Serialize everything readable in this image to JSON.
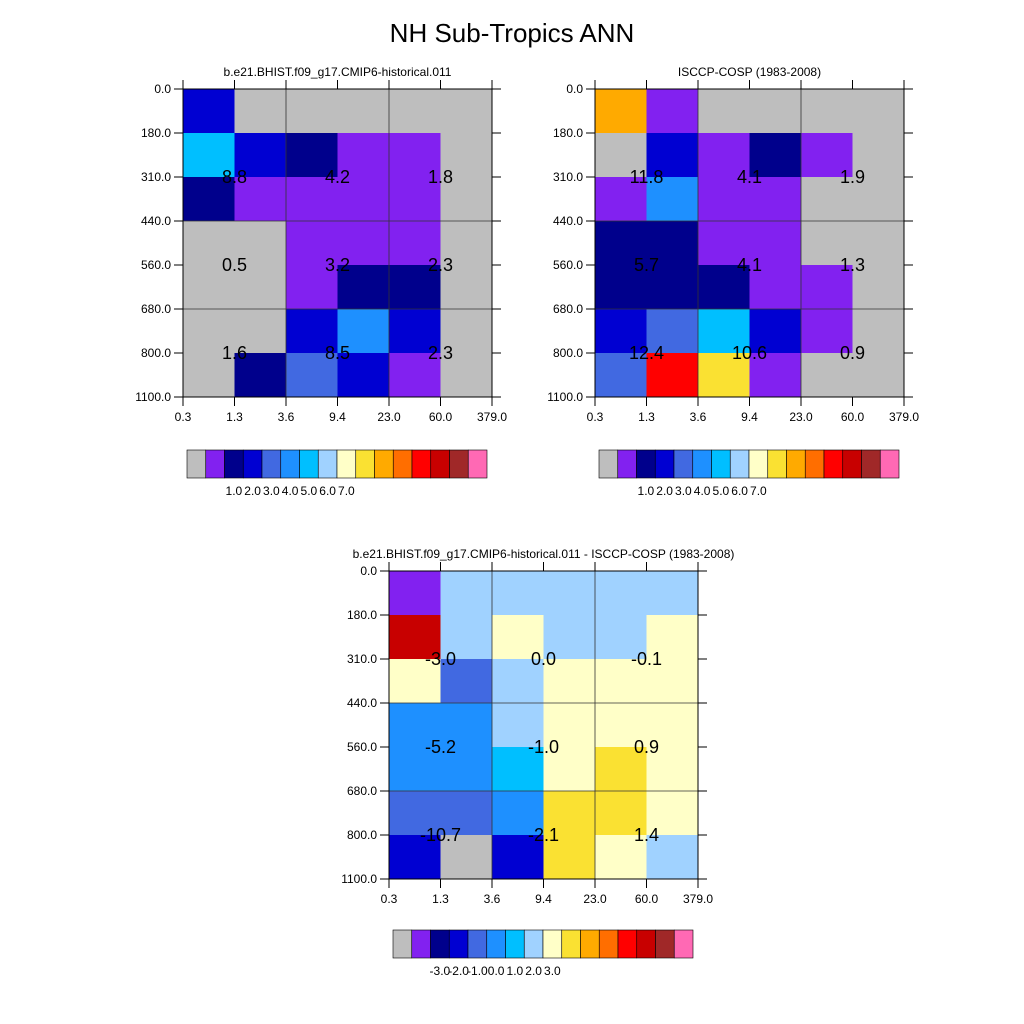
{
  "title": "NH Sub-Tropics ANN",
  "palette": {
    "gray": "#bebebe",
    "violet": "#8221f0",
    "navy": "#00008c",
    "blue": "#0000d2",
    "royal": "#4169e1",
    "dodger": "#1e90ff",
    "sky": "#00bfff",
    "lightblue": "#a0d2ff",
    "cream": "#ffffc8",
    "gold": "#fae132",
    "amber": "#ffaa00",
    "orange": "#ff6e00",
    "red": "#ff0000",
    "crimson": "#c80000",
    "maroon": "#a02828",
    "pink": "#ff69b4"
  },
  "chart_data": [
    {
      "type": "heatmap",
      "title": "b.e21.BHIST.f09_g17.CMIP6-historical.011",
      "x_ticks": [
        "0.3",
        "1.3",
        "3.6",
        "9.4",
        "23.0",
        "60.0",
        "379.0"
      ],
      "y_ticks": [
        "0.0",
        "180.0",
        "310.0",
        "440.0",
        "560.0",
        "680.0",
        "800.0",
        "1100.0"
      ],
      "cell_colors": [
        [
          "blue",
          "gray",
          "gray",
          "gray",
          "gray",
          "gray"
        ],
        [
          "sky",
          "blue",
          "navy",
          "violet",
          "violet",
          "gray"
        ],
        [
          "navy",
          "violet",
          "violet",
          "violet",
          "violet",
          "gray"
        ],
        [
          "gray",
          "gray",
          "violet",
          "violet",
          "violet",
          "gray"
        ],
        [
          "gray",
          "gray",
          "violet",
          "navy",
          "navy",
          "gray"
        ],
        [
          "gray",
          "gray",
          "blue",
          "dodger",
          "blue",
          "gray"
        ],
        [
          "gray",
          "navy",
          "royal",
          "blue",
          "violet",
          "gray"
        ]
      ],
      "block_values": [
        [
          "8.8",
          "4.2",
          "1.8"
        ],
        [
          "0.5",
          "3.2",
          "2.3"
        ],
        [
          "1.6",
          "8.5",
          "2.3"
        ]
      ],
      "colorbar": {
        "colors": [
          "gray",
          "violet",
          "navy",
          "blue",
          "royal",
          "dodger",
          "sky",
          "lightblue",
          "cream",
          "gold",
          "amber",
          "orange",
          "red",
          "crimson",
          "maroon",
          "pink"
        ],
        "labels": [
          "1.0",
          "2.0",
          "3.0",
          "4.0",
          "5.0",
          "6.0",
          "7.0"
        ]
      }
    },
    {
      "type": "heatmap",
      "title": "ISCCP-COSP (1983-2008)",
      "x_ticks": [
        "0.3",
        "1.3",
        "3.6",
        "9.4",
        "23.0",
        "60.0",
        "379.0"
      ],
      "y_ticks": [
        "0.0",
        "180.0",
        "310.0",
        "440.0",
        "560.0",
        "680.0",
        "800.0",
        "1100.0"
      ],
      "cell_colors": [
        [
          "amber",
          "violet",
          "gray",
          "gray",
          "gray",
          "gray"
        ],
        [
          "gray",
          "blue",
          "violet",
          "navy",
          "violet",
          "gray"
        ],
        [
          "violet",
          "dodger",
          "violet",
          "violet",
          "gray",
          "gray"
        ],
        [
          "navy",
          "navy",
          "violet",
          "violet",
          "gray",
          "gray"
        ],
        [
          "navy",
          "navy",
          "navy",
          "violet",
          "violet",
          "gray"
        ],
        [
          "blue",
          "royal",
          "sky",
          "blue",
          "violet",
          "gray"
        ],
        [
          "royal",
          "red",
          "gold",
          "violet",
          "gray",
          "gray"
        ]
      ],
      "block_values": [
        [
          "11.8",
          "4.1",
          "1.9"
        ],
        [
          "5.7",
          "4.1",
          "1.3"
        ],
        [
          "12.4",
          "10.6",
          "0.9"
        ]
      ],
      "colorbar": {
        "colors": [
          "gray",
          "violet",
          "navy",
          "blue",
          "royal",
          "dodger",
          "sky",
          "lightblue",
          "cream",
          "gold",
          "amber",
          "orange",
          "red",
          "crimson",
          "maroon",
          "pink"
        ],
        "labels": [
          "1.0",
          "2.0",
          "3.0",
          "4.0",
          "5.0",
          "6.0",
          "7.0"
        ]
      }
    },
    {
      "type": "heatmap",
      "title": "b.e21.BHIST.f09_g17.CMIP6-historical.011 - ISCCP-COSP (1983-2008)",
      "x_ticks": [
        "0.3",
        "1.3",
        "3.6",
        "9.4",
        "23.0",
        "60.0",
        "379.0"
      ],
      "y_ticks": [
        "0.0",
        "180.0",
        "310.0",
        "440.0",
        "560.0",
        "680.0",
        "800.0",
        "1100.0"
      ],
      "cell_colors": [
        [
          "violet",
          "lightblue",
          "lightblue",
          "lightblue",
          "lightblue",
          "lightblue"
        ],
        [
          "crimson",
          "lightblue",
          "cream",
          "lightblue",
          "lightblue",
          "cream"
        ],
        [
          "cream",
          "royal",
          "lightblue",
          "cream",
          "cream",
          "cream"
        ],
        [
          "dodger",
          "dodger",
          "lightblue",
          "cream",
          "cream",
          "cream"
        ],
        [
          "dodger",
          "dodger",
          "sky",
          "cream",
          "gold",
          "cream"
        ],
        [
          "royal",
          "royal",
          "dodger",
          "gold",
          "gold",
          "cream"
        ],
        [
          "blue",
          "gray",
          "blue",
          "gold",
          "cream",
          "lightblue"
        ]
      ],
      "block_values": [
        [
          "-3.0",
          "0.0",
          "-0.1"
        ],
        [
          "-5.2",
          "-1.0",
          "0.9"
        ],
        [
          "-10.7",
          "-2.1",
          "1.4"
        ]
      ],
      "colorbar": {
        "colors": [
          "gray",
          "violet",
          "navy",
          "blue",
          "royal",
          "dodger",
          "sky",
          "lightblue",
          "cream",
          "gold",
          "amber",
          "orange",
          "red",
          "crimson",
          "maroon",
          "pink"
        ],
        "labels": [
          "-3.0",
          "-2.0",
          "-1.0",
          "0.0",
          "1.0",
          "2.0",
          "3.0"
        ]
      }
    }
  ]
}
